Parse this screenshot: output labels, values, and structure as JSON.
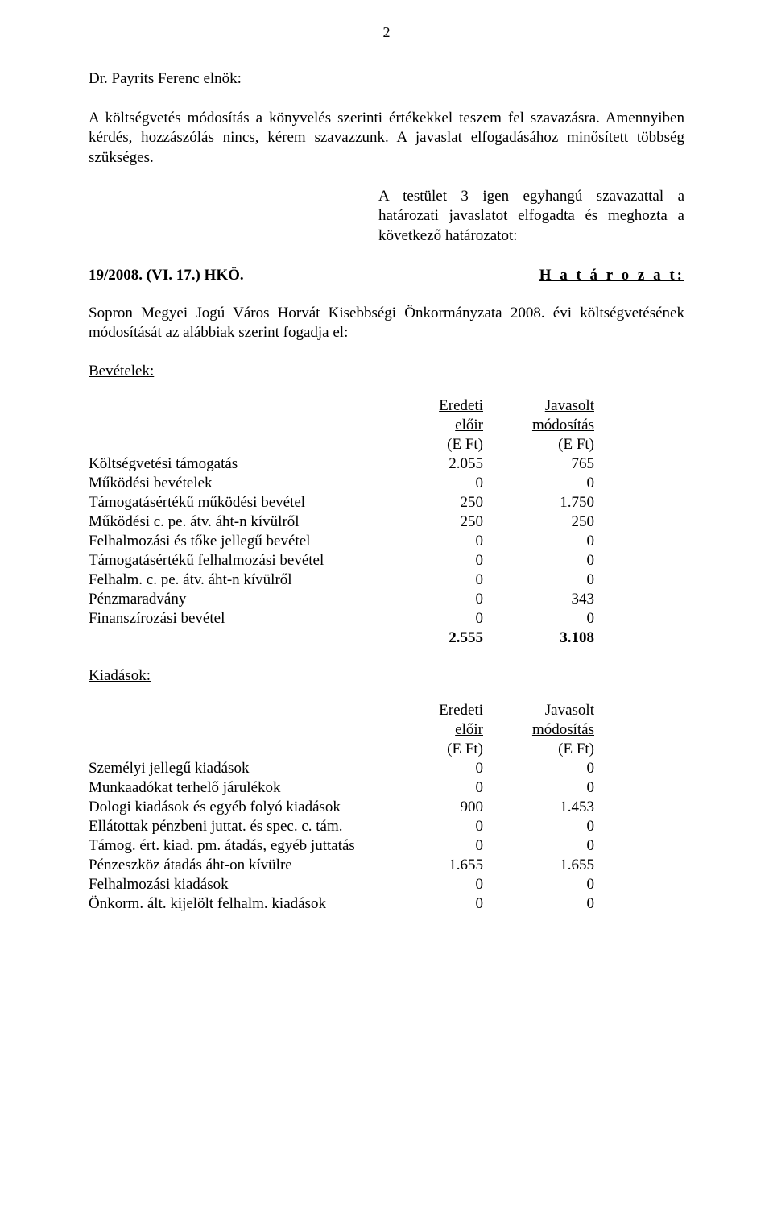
{
  "page_number": "2",
  "speaker": "Dr. Payrits Ferenc elnök:",
  "para1": "A költségvetés módosítás a könyvelés szerinti értékekkel teszem fel szavazásra. Amennyiben kérdés, hozzászólás nincs, kérem szavazzunk. A javaslat elfogadásához minősített többség szükséges.",
  "resolution_text": "A testület 3 igen egyhangú szavazattal a határozati javaslatot elfogadta és meghozta a következő határozatot:",
  "ref_line_left": "19/2008. (VI. 17.) HKÖ.",
  "ref_line_right": "H a t á r o z a t:",
  "para2": "Sopron Megyei Jogú Város Horvát Kisebbségi Önkormányzata 2008. évi költségvetésének módosítását az alábbiak szerint fogadja el:",
  "revenues": {
    "label": "Bevételek:",
    "head_c1_a": "Eredeti",
    "head_c1_b": "előir",
    "head_c1_c": "(E Ft)",
    "head_c2_a": "Javasolt",
    "head_c2_b": "módosítás",
    "head_c2_c": "(E Ft)",
    "rows": [
      {
        "label": "Költségvetési támogatás",
        "c1": "2.055",
        "c2": "765"
      },
      {
        "label": "Működési bevételek",
        "c1": "0",
        "c2": "0"
      },
      {
        "label": "Támogatásértékű működési bevétel",
        "c1": "250",
        "c2": "1.750"
      },
      {
        "label": "Működési c. pe. átv. áht-n kívülről",
        "c1": "250",
        "c2": "250"
      },
      {
        "label": "Felhalmozási és tőke jellegű bevétel",
        "c1": "0",
        "c2": "0"
      },
      {
        "label": "Támogatásértékű felhalmozási bevétel",
        "c1": "0",
        "c2": "0"
      },
      {
        "label": "Felhalm. c. pe. átv. áht-n kívülről",
        "c1": "0",
        "c2": "0"
      },
      {
        "label": "Pénzmaradvány",
        "c1": "0",
        "c2": "343"
      },
      {
        "label": "Finanszírozási bevétel",
        "c1": "0",
        "c2": "0"
      }
    ],
    "total": {
      "c1": "2.555",
      "c2": "3.108"
    }
  },
  "expenses": {
    "label": "Kiadások:",
    "head_c1_a": "Eredeti",
    "head_c1_b": "előir",
    "head_c1_c": "(E Ft)",
    "head_c2_a": "Javasolt",
    "head_c2_b": "módosítás",
    "head_c2_c": "(E Ft)",
    "rows": [
      {
        "label": "Személyi jellegű kiadások",
        "c1": "0",
        "c2": "0"
      },
      {
        "label": "Munkaadókat terhelő járulékok",
        "c1": "0",
        "c2": "0"
      },
      {
        "label": "Dologi kiadások és egyéb folyó kiadások",
        "c1": "900",
        "c2": "1.453"
      },
      {
        "label": "Ellátottak pénzbeni juttat. és spec. c. tám.",
        "c1": "0",
        "c2": "0"
      },
      {
        "label": "Támog. ért. kiad. pm. átadás, egyéb juttatás",
        "c1": "0",
        "c2": "0"
      },
      {
        "label": "Pénzeszköz átadás áht-on kívülre",
        "c1": "1.655",
        "c2": "1.655"
      },
      {
        "label": "Felhalmozási kiadások",
        "c1": "0",
        "c2": "0"
      },
      {
        "label": "Önkorm. ált. kijelölt felhalm. kiadások",
        "c1": "0",
        "c2": "0"
      }
    ]
  }
}
